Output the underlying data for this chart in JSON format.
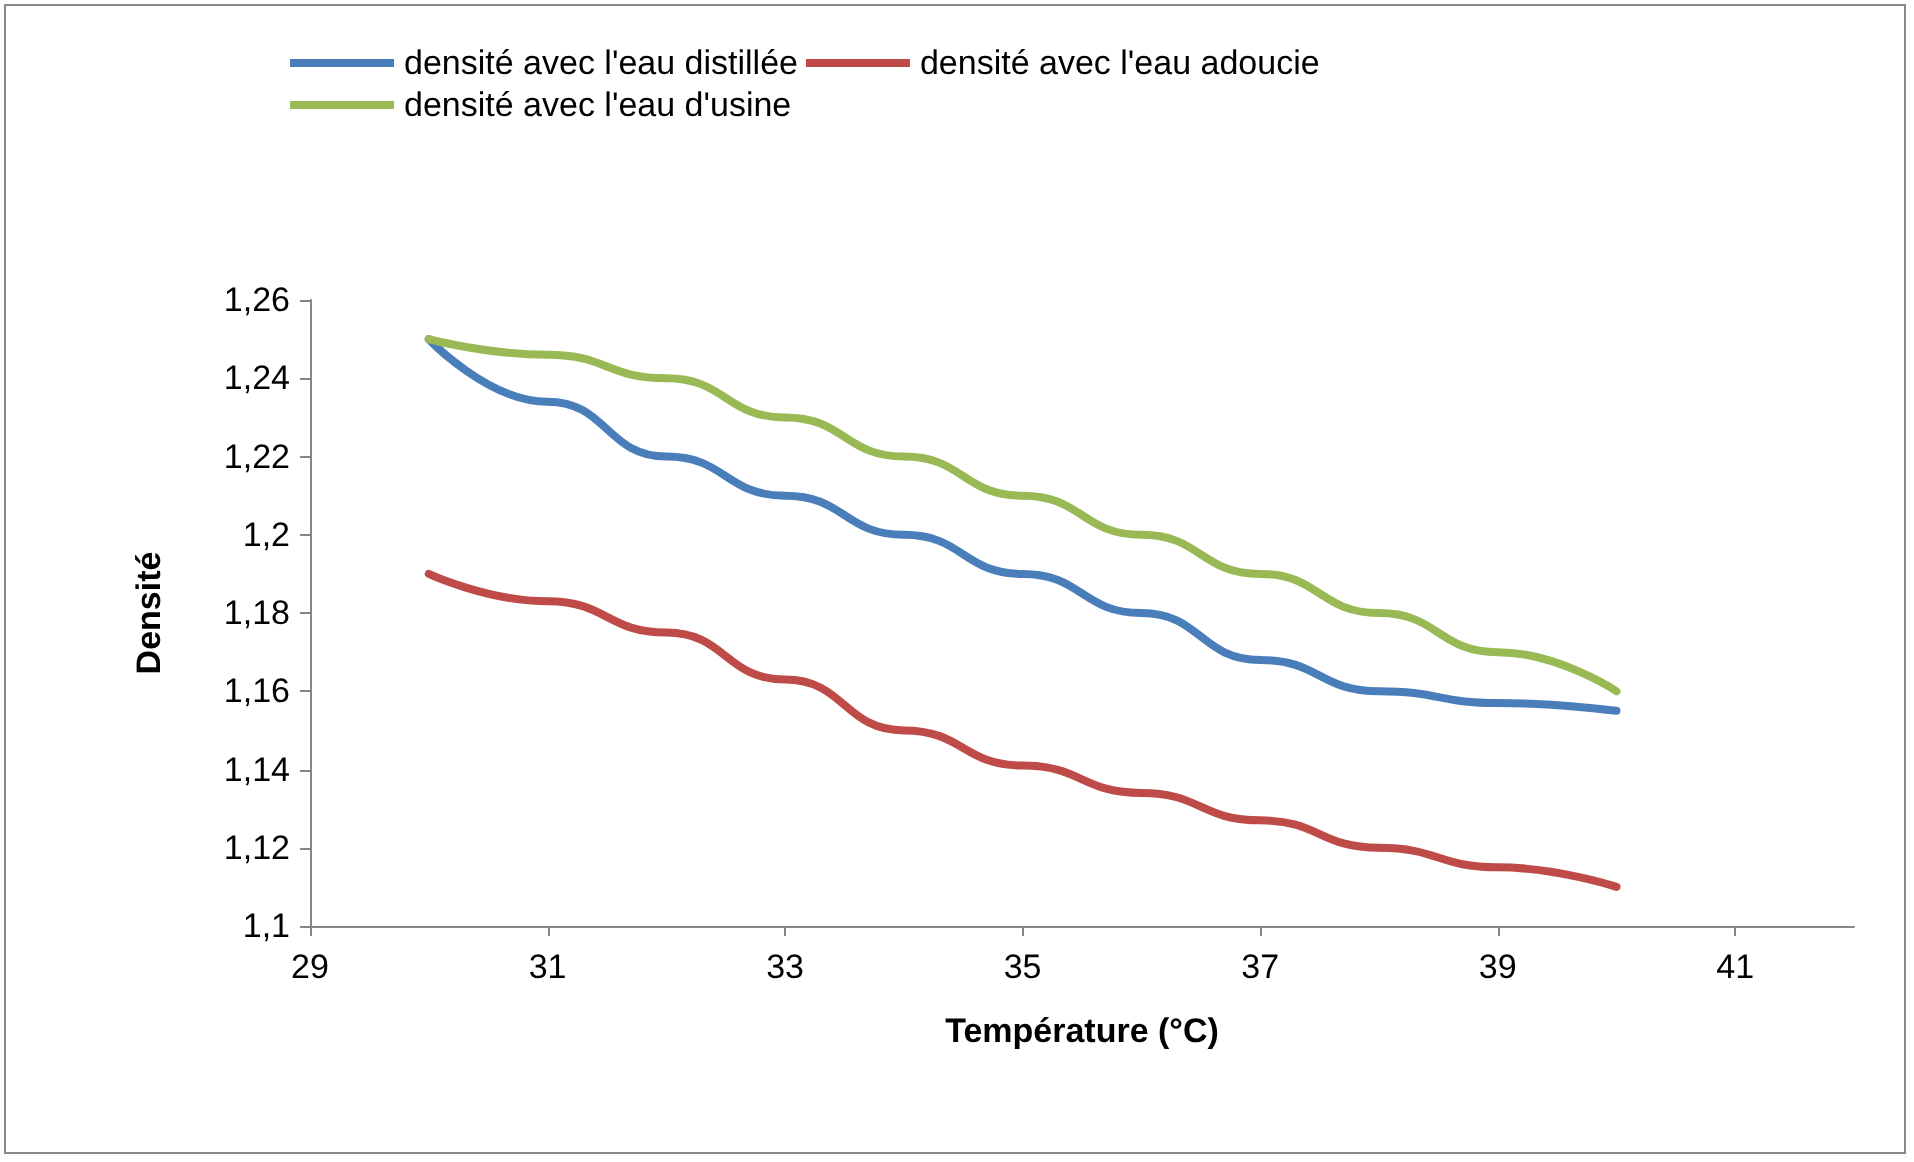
{
  "chart_data": {
    "type": "line",
    "xlabel": "Température (°C)",
    "ylabel": "Densité",
    "x": [
      30,
      31,
      32,
      33,
      34,
      35,
      36,
      37,
      38,
      39,
      40
    ],
    "series": [
      {
        "name": "densité avec l'eau distillée",
        "color": "#4a7ebb",
        "values": [
          1.25,
          1.234,
          1.22,
          1.21,
          1.2,
          1.19,
          1.18,
          1.168,
          1.16,
          1.157,
          1.155
        ]
      },
      {
        "name": "densité avec l'eau adoucie",
        "color": "#be4b48",
        "values": [
          1.19,
          1.183,
          1.175,
          1.163,
          1.15,
          1.141,
          1.134,
          1.127,
          1.12,
          1.115,
          1.11
        ]
      },
      {
        "name": "densité avec l'eau d'usine",
        "color": "#98b954",
        "values": [
          1.25,
          1.246,
          1.24,
          1.23,
          1.22,
          1.21,
          1.2,
          1.19,
          1.18,
          1.17,
          1.16
        ]
      }
    ],
    "xlim": [
      29,
      42
    ],
    "xticks": [
      29,
      31,
      33,
      35,
      37,
      39,
      41
    ],
    "ylim": [
      1.1,
      1.26
    ],
    "yticks": [
      {
        "value": 1.1,
        "label": "1,1"
      },
      {
        "value": 1.12,
        "label": "1,12"
      },
      {
        "value": 1.14,
        "label": "1,14"
      },
      {
        "value": 1.16,
        "label": "1,16"
      },
      {
        "value": 1.18,
        "label": "1,18"
      },
      {
        "value": 1.2,
        "label": "1,2"
      },
      {
        "value": 1.22,
        "label": "1,22"
      },
      {
        "value": 1.24,
        "label": "1,24"
      },
      {
        "value": 1.26,
        "label": "1,26"
      }
    ],
    "grid": false,
    "legend": "top",
    "marker": "none",
    "line_style": "solid"
  }
}
